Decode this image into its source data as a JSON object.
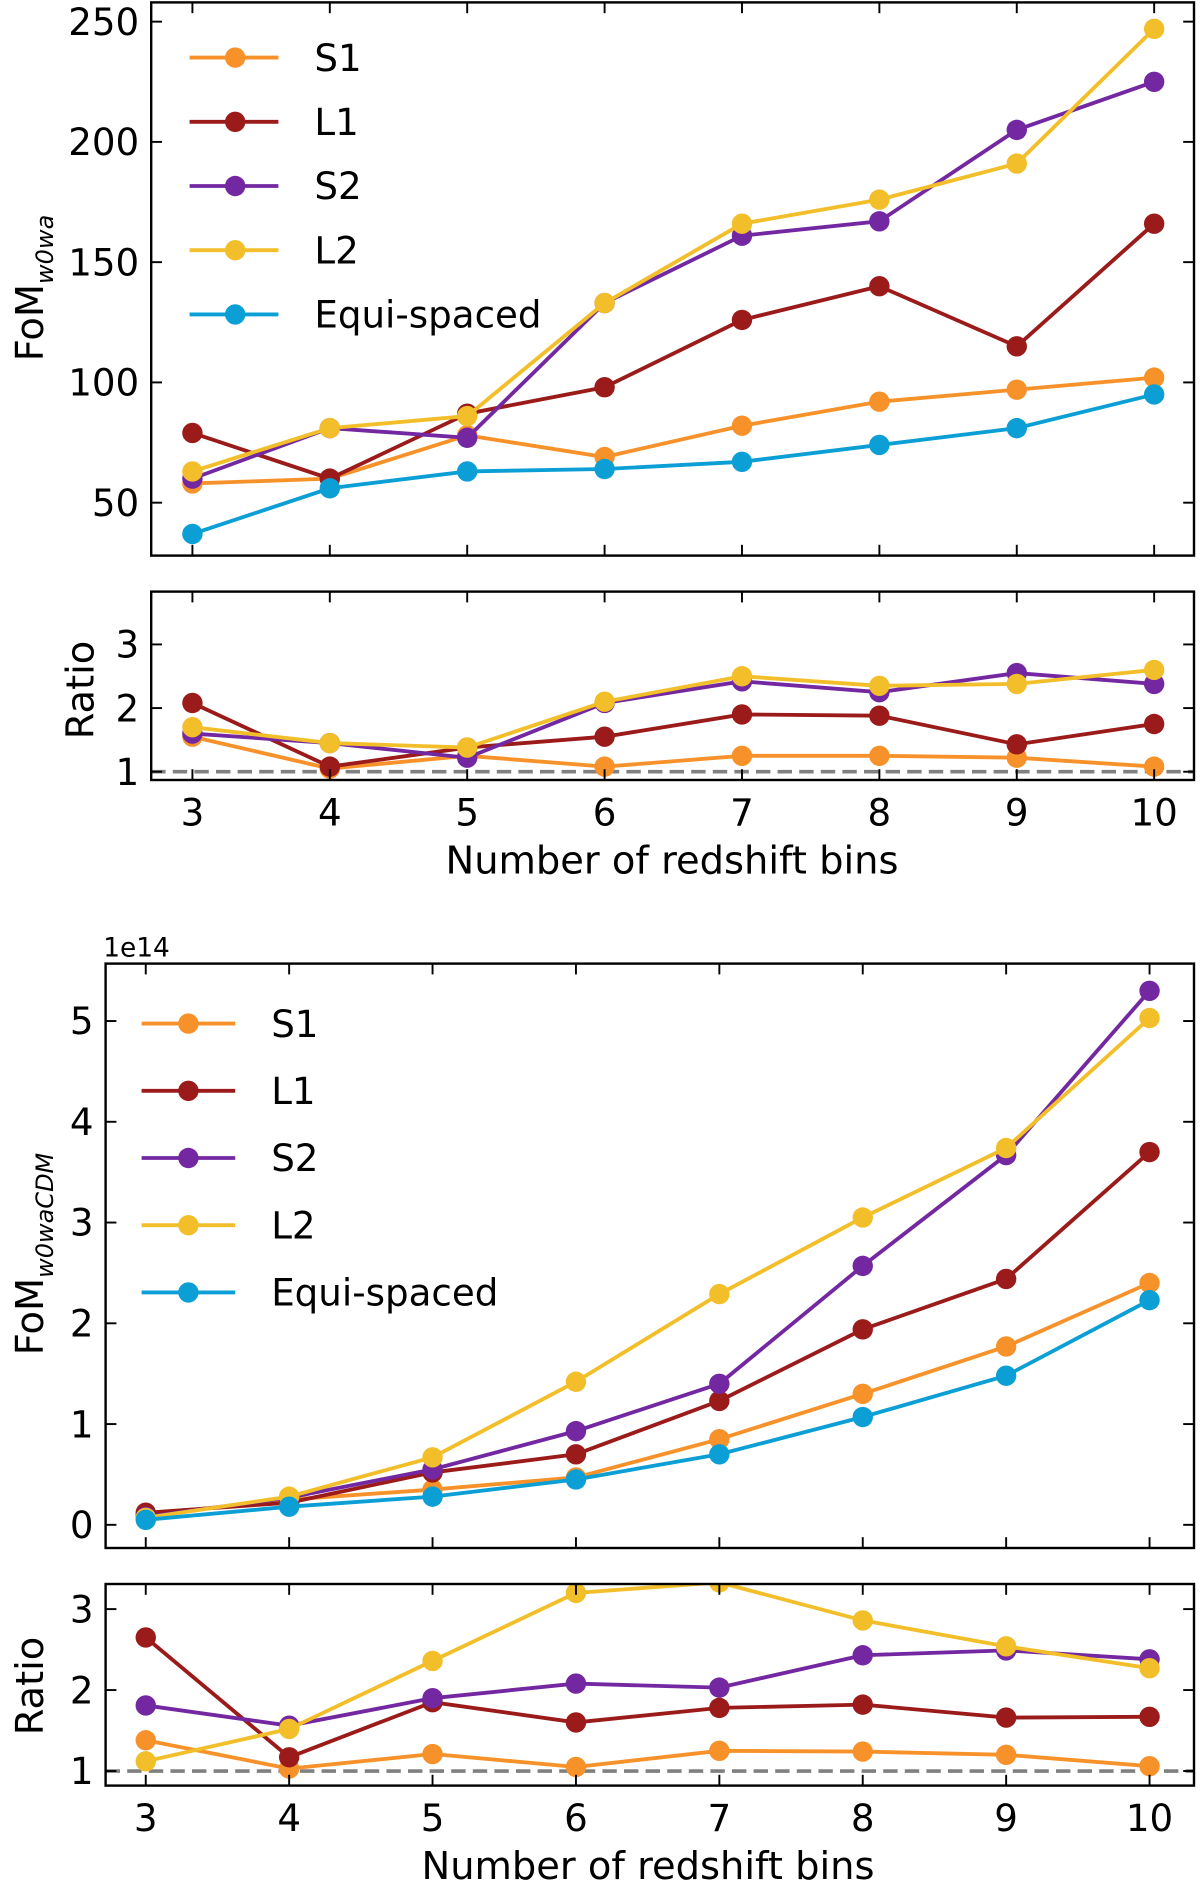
{
  "legend_entries": [
    "S1",
    "L1",
    "S2",
    "L2",
    "Equi-spaced"
  ],
  "colors": {
    "S1": "#f7922b",
    "L1": "#9b1a1a",
    "S2": "#7328a2",
    "L2": "#f2bf2a",
    "Equi-spaced": "#0b9fd5",
    "reference": "#808080"
  },
  "chart_data": [
    {
      "type": "line",
      "ylabel": "FoM",
      "ylabel_sub": "w0wa",
      "xlim": [
        2.7,
        10.29
      ],
      "ylim": [
        28,
        258
      ],
      "x": [
        3,
        4,
        5,
        6,
        7,
        8,
        9,
        10
      ],
      "xticks": [
        3,
        4,
        5,
        6,
        7,
        8,
        9,
        10
      ],
      "yticks": [
        50,
        100,
        150,
        200,
        250
      ],
      "legend": "top-left",
      "series": [
        {
          "name": "S1",
          "values": [
            58,
            60,
            78,
            69,
            82,
            92,
            97,
            102
          ]
        },
        {
          "name": "L1",
          "values": [
            79,
            60,
            87,
            98,
            126,
            140,
            115,
            166
          ]
        },
        {
          "name": "S2",
          "values": [
            60,
            81,
            77,
            133,
            161,
            167,
            205,
            225
          ]
        },
        {
          "name": "L2",
          "values": [
            63,
            81,
            86,
            133,
            166,
            176,
            191,
            247
          ]
        },
        {
          "name": "Equi-spaced",
          "values": [
            37,
            56,
            63,
            64,
            67,
            74,
            81,
            95
          ]
        }
      ]
    },
    {
      "type": "line",
      "ylabel": "Ratio",
      "xlabel": "Number of redshift bins",
      "xlim": [
        2.7,
        10.29
      ],
      "ylim": [
        0.87,
        3.83
      ],
      "x": [
        3,
        4,
        5,
        6,
        7,
        8,
        9,
        10
      ],
      "xticks": [
        3,
        4,
        5,
        6,
        7,
        8,
        9,
        10
      ],
      "yticks": [
        1,
        2,
        3
      ],
      "reference_line": 1,
      "series": [
        {
          "name": "S1",
          "values": [
            1.55,
            1.05,
            1.25,
            1.08,
            1.25,
            1.25,
            1.22,
            1.08
          ]
        },
        {
          "name": "L1",
          "values": [
            2.08,
            1.08,
            1.38,
            1.55,
            1.9,
            1.88,
            1.43,
            1.75
          ]
        },
        {
          "name": "S2",
          "values": [
            1.6,
            1.45,
            1.22,
            2.08,
            2.42,
            2.25,
            2.55,
            2.38
          ]
        },
        {
          "name": "L2",
          "values": [
            1.7,
            1.45,
            1.38,
            2.1,
            2.5,
            2.35,
            2.38,
            2.6
          ]
        }
      ]
    },
    {
      "type": "line",
      "ylabel": "FoM",
      "ylabel_sub": "w0waCDM",
      "offset_label": "1e14",
      "xlim": [
        2.72,
        10.31
      ],
      "ylim": [
        -0.23,
        5.57
      ],
      "x": [
        3,
        4,
        5,
        6,
        7,
        8,
        9,
        10
      ],
      "xticks": [
        3,
        4,
        5,
        6,
        7,
        8,
        9,
        10
      ],
      "yticks": [
        0,
        1,
        2,
        3,
        4,
        5
      ],
      "legend": "top-left",
      "series": [
        {
          "name": "S1",
          "values": [
            0.1,
            0.25,
            0.35,
            0.47,
            0.85,
            1.3,
            1.77,
            2.4
          ]
        },
        {
          "name": "L1",
          "values": [
            0.12,
            0.22,
            0.52,
            0.7,
            1.23,
            1.94,
            2.44,
            3.7
          ]
        },
        {
          "name": "S2",
          "values": [
            0.08,
            0.27,
            0.55,
            0.93,
            1.4,
            2.57,
            3.67,
            5.3
          ]
        },
        {
          "name": "L2",
          "values": [
            0.07,
            0.28,
            0.67,
            1.42,
            2.29,
            3.05,
            3.74,
            5.03
          ]
        },
        {
          "name": "Equi-spaced",
          "values": [
            0.05,
            0.18,
            0.28,
            0.45,
            0.7,
            1.07,
            1.48,
            2.23
          ]
        }
      ]
    },
    {
      "type": "line",
      "ylabel": "Ratio",
      "xlabel": "Number of redshift bins",
      "xlim": [
        2.72,
        10.31
      ],
      "ylim": [
        0.82,
        3.31
      ],
      "x": [
        3,
        4,
        5,
        6,
        7,
        8,
        9,
        10
      ],
      "xticks": [
        3,
        4,
        5,
        6,
        7,
        8,
        9,
        10
      ],
      "yticks": [
        1,
        2,
        3
      ],
      "reference_line": 1,
      "series": [
        {
          "name": "S1",
          "values": [
            1.38,
            1.03,
            1.21,
            1.05,
            1.25,
            1.24,
            1.2,
            1.06
          ]
        },
        {
          "name": "L1",
          "values": [
            2.65,
            1.17,
            1.85,
            1.6,
            1.78,
            1.82,
            1.66,
            1.67
          ]
        },
        {
          "name": "S2",
          "values": [
            1.81,
            1.56,
            1.9,
            2.08,
            2.03,
            2.43,
            2.49,
            2.38
          ]
        },
        {
          "name": "L2",
          "values": [
            1.12,
            1.52,
            2.36,
            3.2,
            3.33,
            2.86,
            2.54,
            2.27
          ]
        }
      ]
    }
  ]
}
